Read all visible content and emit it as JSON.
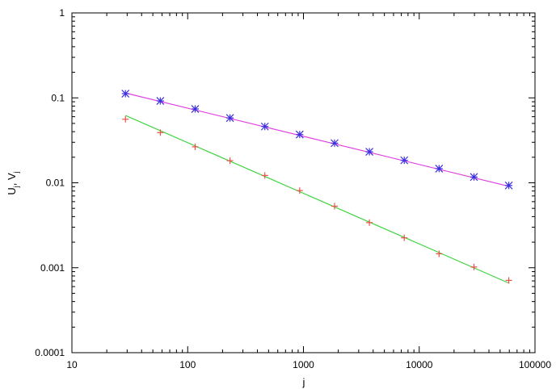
{
  "chart_data": {
    "type": "scatter",
    "title": "",
    "xlabel": "j",
    "ylabel": "U_j, V_j",
    "x_scale": "log",
    "y_scale": "log",
    "xlim": [
      10,
      100000
    ],
    "ylim": [
      0.0001,
      1
    ],
    "grid": false,
    "x_ticks": [
      "10",
      "100",
      "1000",
      "10000",
      "100000"
    ],
    "y_ticks": [
      "0.0001",
      "0.001",
      "0.01",
      "0.1",
      "1"
    ],
    "series": [
      {
        "marker": "asterisk",
        "marker_color": "#3b2fe0",
        "fit_color": "#e040e0",
        "x": [
          29,
          58,
          116,
          232,
          464,
          928,
          1856,
          3712,
          7424,
          14848,
          29696,
          59392
        ],
        "y": [
          0.112,
          0.092,
          0.074,
          0.058,
          0.046,
          0.037,
          0.0293,
          0.0232,
          0.0184,
          0.0147,
          0.0117,
          0.0093
        ],
        "fit": {
          "x": [
            29,
            59392
          ],
          "y": [
            0.114,
            0.0091
          ]
        }
      },
      {
        "marker": "plus",
        "marker_color": "#e8524a",
        "fit_color": "#3fd43f",
        "x": [
          29,
          58,
          116,
          232,
          464,
          928,
          1856,
          3712,
          7424,
          14848,
          29696,
          59392
        ],
        "y": [
          0.056,
          0.039,
          0.0265,
          0.0182,
          0.0122,
          0.0081,
          0.0053,
          0.0034,
          0.00225,
          0.00146,
          0.00102,
          0.00071
        ],
        "fit": {
          "x": [
            29,
            59392
          ],
          "y": [
            0.062,
            0.00066
          ]
        }
      }
    ]
  }
}
